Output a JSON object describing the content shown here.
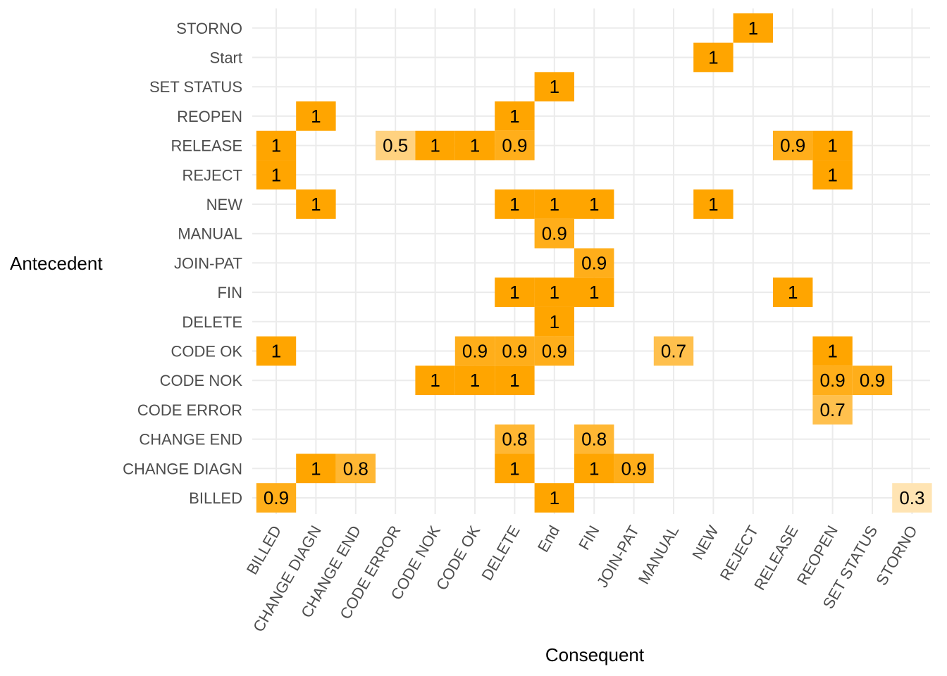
{
  "chart_data": {
    "type": "heatmap",
    "xlabel": "Consequent",
    "ylabel": "Antecedent",
    "x_categories": [
      "BILLED",
      "CHANGE DIAGN",
      "CHANGE END",
      "CODE ERROR",
      "CODE NOK",
      "CODE OK",
      "DELETE",
      "End",
      "FIN",
      "JOIN-PAT",
      "MANUAL",
      "NEW",
      "REJECT",
      "RELEASE",
      "REOPEN",
      "SET STATUS",
      "STORNO"
    ],
    "y_categories": [
      "BILLED",
      "CHANGE DIAGN",
      "CHANGE END",
      "CODE ERROR",
      "CODE NOK",
      "CODE OK",
      "DELETE",
      "FIN",
      "JOIN-PAT",
      "MANUAL",
      "NEW",
      "REJECT",
      "RELEASE",
      "REOPEN",
      "SET STATUS",
      "Start",
      "STORNO"
    ],
    "color_low": "#ffffff",
    "color_high": "#ffa500",
    "grid": true,
    "cells": [
      {
        "antecedent": "STORNO",
        "consequent": "REJECT",
        "value": 1
      },
      {
        "antecedent": "Start",
        "consequent": "NEW",
        "value": 1
      },
      {
        "antecedent": "SET STATUS",
        "consequent": "End",
        "value": 1
      },
      {
        "antecedent": "REOPEN",
        "consequent": "CHANGE DIAGN",
        "value": 1
      },
      {
        "antecedent": "REOPEN",
        "consequent": "DELETE",
        "value": 1
      },
      {
        "antecedent": "RELEASE",
        "consequent": "BILLED",
        "value": 1
      },
      {
        "antecedent": "RELEASE",
        "consequent": "CODE ERROR",
        "value": 0.5
      },
      {
        "antecedent": "RELEASE",
        "consequent": "CODE NOK",
        "value": 1
      },
      {
        "antecedent": "RELEASE",
        "consequent": "CODE OK",
        "value": 1
      },
      {
        "antecedent": "RELEASE",
        "consequent": "DELETE",
        "value": 0.9
      },
      {
        "antecedent": "RELEASE",
        "consequent": "RELEASE",
        "value": 0.9
      },
      {
        "antecedent": "RELEASE",
        "consequent": "REOPEN",
        "value": 1
      },
      {
        "antecedent": "REJECT",
        "consequent": "BILLED",
        "value": 1
      },
      {
        "antecedent": "REJECT",
        "consequent": "REOPEN",
        "value": 1
      },
      {
        "antecedent": "NEW",
        "consequent": "CHANGE DIAGN",
        "value": 1
      },
      {
        "antecedent": "NEW",
        "consequent": "DELETE",
        "value": 1
      },
      {
        "antecedent": "NEW",
        "consequent": "End",
        "value": 1
      },
      {
        "antecedent": "NEW",
        "consequent": "FIN",
        "value": 1
      },
      {
        "antecedent": "NEW",
        "consequent": "NEW",
        "value": 1
      },
      {
        "antecedent": "MANUAL",
        "consequent": "End",
        "value": 0.9
      },
      {
        "antecedent": "JOIN-PAT",
        "consequent": "FIN",
        "value": 0.9
      },
      {
        "antecedent": "FIN",
        "consequent": "DELETE",
        "value": 1
      },
      {
        "antecedent": "FIN",
        "consequent": "End",
        "value": 1
      },
      {
        "antecedent": "FIN",
        "consequent": "FIN",
        "value": 1
      },
      {
        "antecedent": "FIN",
        "consequent": "RELEASE",
        "value": 1
      },
      {
        "antecedent": "DELETE",
        "consequent": "End",
        "value": 1
      },
      {
        "antecedent": "CODE OK",
        "consequent": "BILLED",
        "value": 1
      },
      {
        "antecedent": "CODE OK",
        "consequent": "CODE OK",
        "value": 0.9
      },
      {
        "antecedent": "CODE OK",
        "consequent": "DELETE",
        "value": 0.9
      },
      {
        "antecedent": "CODE OK",
        "consequent": "End",
        "value": 0.9
      },
      {
        "antecedent": "CODE OK",
        "consequent": "MANUAL",
        "value": 0.7
      },
      {
        "antecedent": "CODE OK",
        "consequent": "REOPEN",
        "value": 1
      },
      {
        "antecedent": "CODE NOK",
        "consequent": "CODE NOK",
        "value": 1
      },
      {
        "antecedent": "CODE NOK",
        "consequent": "CODE OK",
        "value": 1
      },
      {
        "antecedent": "CODE NOK",
        "consequent": "DELETE",
        "value": 1
      },
      {
        "antecedent": "CODE NOK",
        "consequent": "REOPEN",
        "value": 0.9
      },
      {
        "antecedent": "CODE NOK",
        "consequent": "SET STATUS",
        "value": 0.9
      },
      {
        "antecedent": "CODE ERROR",
        "consequent": "REOPEN",
        "value": 0.7
      },
      {
        "antecedent": "CHANGE END",
        "consequent": "DELETE",
        "value": 0.8
      },
      {
        "antecedent": "CHANGE END",
        "consequent": "FIN",
        "value": 0.8
      },
      {
        "antecedent": "CHANGE DIAGN",
        "consequent": "CHANGE DIAGN",
        "value": 1
      },
      {
        "antecedent": "CHANGE DIAGN",
        "consequent": "CHANGE END",
        "value": 0.8
      },
      {
        "antecedent": "CHANGE DIAGN",
        "consequent": "DELETE",
        "value": 1
      },
      {
        "antecedent": "CHANGE DIAGN",
        "consequent": "FIN",
        "value": 1
      },
      {
        "antecedent": "CHANGE DIAGN",
        "consequent": "JOIN-PAT",
        "value": 0.9
      },
      {
        "antecedent": "BILLED",
        "consequent": "BILLED",
        "value": 0.9
      },
      {
        "antecedent": "BILLED",
        "consequent": "End",
        "value": 1
      },
      {
        "antecedent": "BILLED",
        "consequent": "STORNO",
        "value": 0.3
      }
    ]
  }
}
